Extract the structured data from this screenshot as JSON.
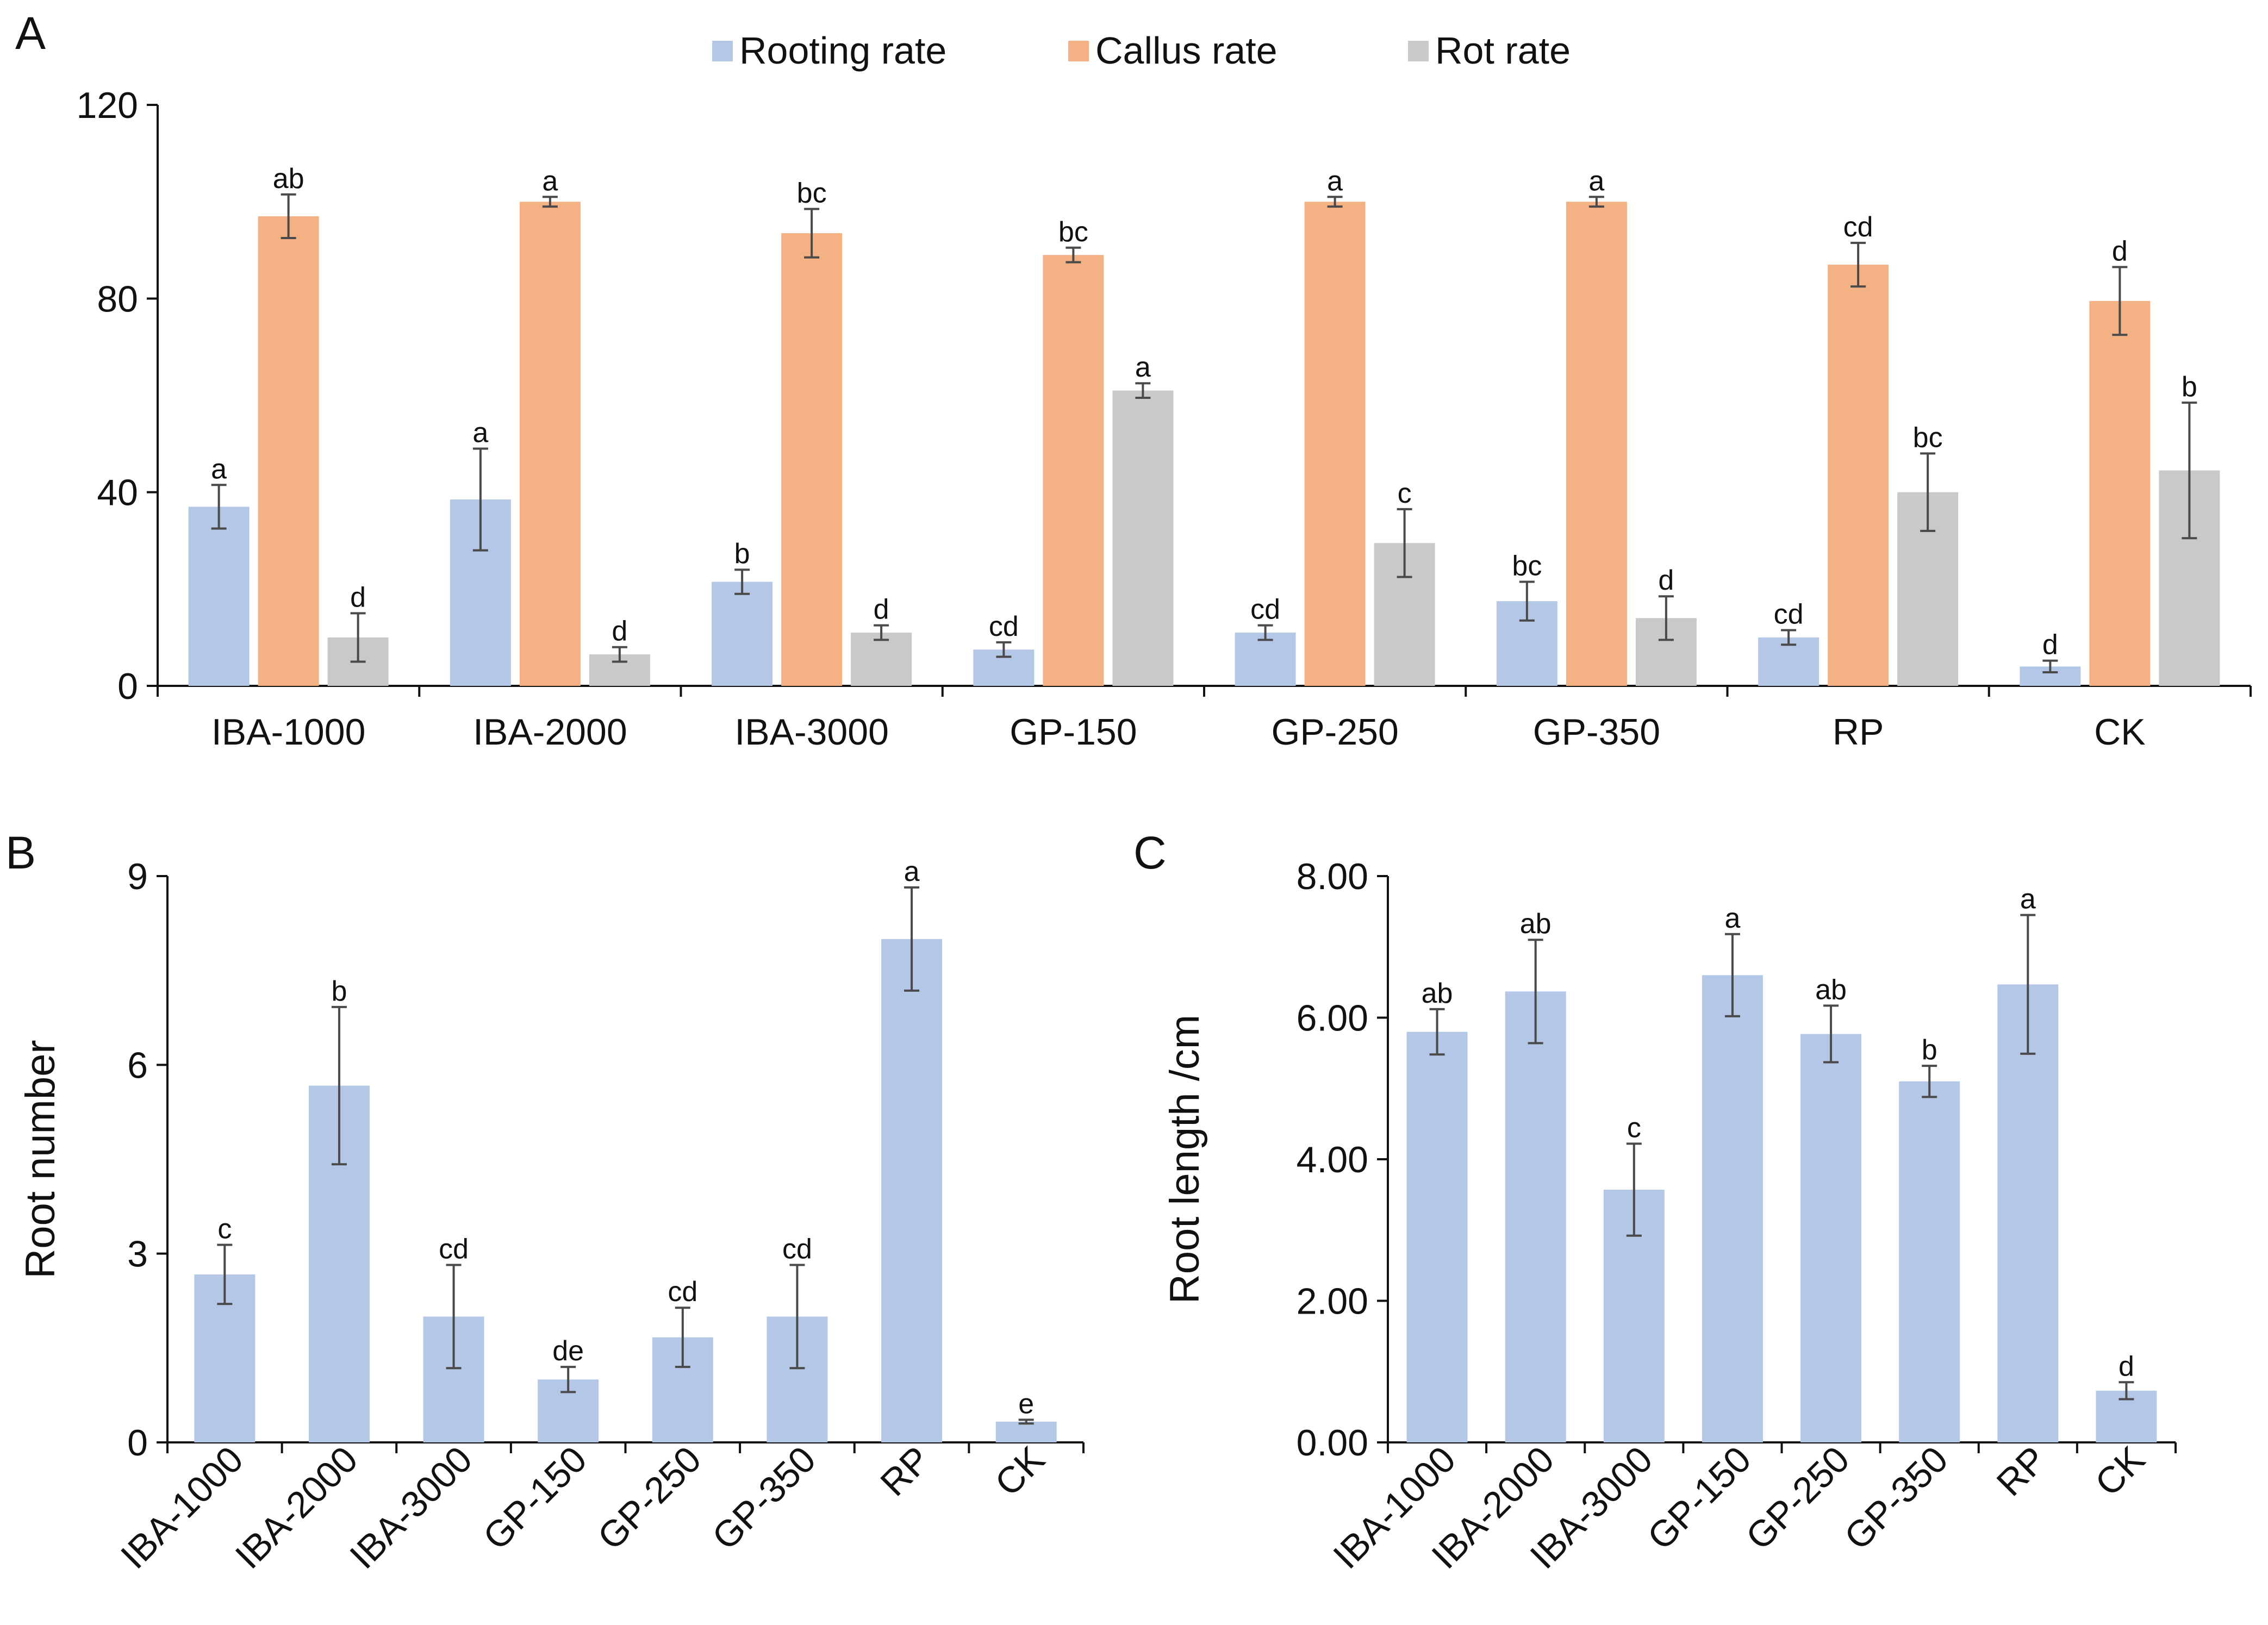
{
  "chart_data": [
    {
      "panel": "A",
      "type": "bar",
      "title": "",
      "xlabel": "",
      "ylabel": "",
      "ylim": [
        0,
        120
      ],
      "yticks": [
        "0",
        "40",
        "80",
        "120"
      ],
      "categories": [
        "IBA-1000",
        "IBA-2000",
        "IBA-3000",
        "GP-150",
        "GP-250",
        "GP-350",
        "RP",
        "CK"
      ],
      "legend_position": "top",
      "series": [
        {
          "name": "Rooting rate",
          "color": "#b4c7e7",
          "values": [
            37,
            38.5,
            21.5,
            7.5,
            11,
            17.5,
            10,
            4
          ],
          "errors": [
            4.5,
            10.5,
            2.5,
            1.5,
            1.5,
            4,
            1.5,
            1.2
          ],
          "labels": [
            "a",
            "a",
            "b",
            "cd",
            "cd",
            "bc",
            "cd",
            "d"
          ]
        },
        {
          "name": "Callus rate",
          "color": "#f4b183",
          "values": [
            97,
            100,
            93.5,
            89,
            100,
            100,
            87,
            79.5
          ],
          "errors": [
            4.5,
            1,
            5,
            1.5,
            1,
            1,
            4.5,
            7
          ],
          "labels": [
            "ab",
            "a",
            "bc",
            "bc",
            "a",
            "a",
            "cd",
            "d"
          ]
        },
        {
          "name": "Rot rate",
          "color": "#c9c9c9",
          "values": [
            10,
            6.5,
            11,
            61,
            29.5,
            14,
            40,
            44.5
          ],
          "errors": [
            5,
            1.5,
            1.5,
            1.5,
            7,
            4.5,
            8,
            14
          ],
          "labels": [
            "d",
            "d",
            "d",
            "a",
            "c",
            "d",
            "bc",
            "b"
          ]
        }
      ]
    },
    {
      "panel": "B",
      "type": "bar",
      "title": "",
      "xlabel": "",
      "ylabel": "Root number",
      "ylim": [
        0,
        9
      ],
      "yticks": [
        "0",
        "3",
        "6",
        "9"
      ],
      "categories": [
        "IBA-1000",
        "IBA-2000",
        "IBA-3000",
        "GP-150",
        "GP-250",
        "GP-350",
        "RP",
        "CK"
      ],
      "series": [
        {
          "name": "Root number",
          "color": "#b4c7e7",
          "values": [
            2.67,
            5.67,
            2.0,
            1.0,
            1.67,
            2.0,
            8.0,
            0.33
          ],
          "errors": [
            0.47,
            1.25,
            0.82,
            0.2,
            0.47,
            0.82,
            0.82,
            0.03
          ],
          "labels": [
            "c",
            "b",
            "cd",
            "de",
            "cd",
            "cd",
            "a",
            "e"
          ]
        }
      ]
    },
    {
      "panel": "C",
      "type": "bar",
      "title": "",
      "xlabel": "",
      "ylabel": "Root length /cm",
      "ylim": [
        0,
        8
      ],
      "yticks": [
        "0.00",
        "2.00",
        "4.00",
        "6.00",
        "8.00"
      ],
      "categories": [
        "IBA-1000",
        "IBA-2000",
        "IBA-3000",
        "GP-150",
        "GP-250",
        "GP-350",
        "RP",
        "CK"
      ],
      "series": [
        {
          "name": "Root length",
          "color": "#b4c7e7",
          "values": [
            5.8,
            6.37,
            3.57,
            6.6,
            5.77,
            5.1,
            6.47,
            0.73
          ],
          "errors": [
            0.32,
            0.73,
            0.65,
            0.58,
            0.4,
            0.22,
            0.98,
            0.12
          ],
          "labels": [
            "ab",
            "ab",
            "c",
            "a",
            "ab",
            "b",
            "a",
            "d"
          ]
        }
      ]
    }
  ],
  "colors": {
    "rooting": "#b4c7e7",
    "callus": "#f4b183",
    "rot": "#c9c9c9",
    "axis": "#111111",
    "error": "#4a4a4a"
  }
}
